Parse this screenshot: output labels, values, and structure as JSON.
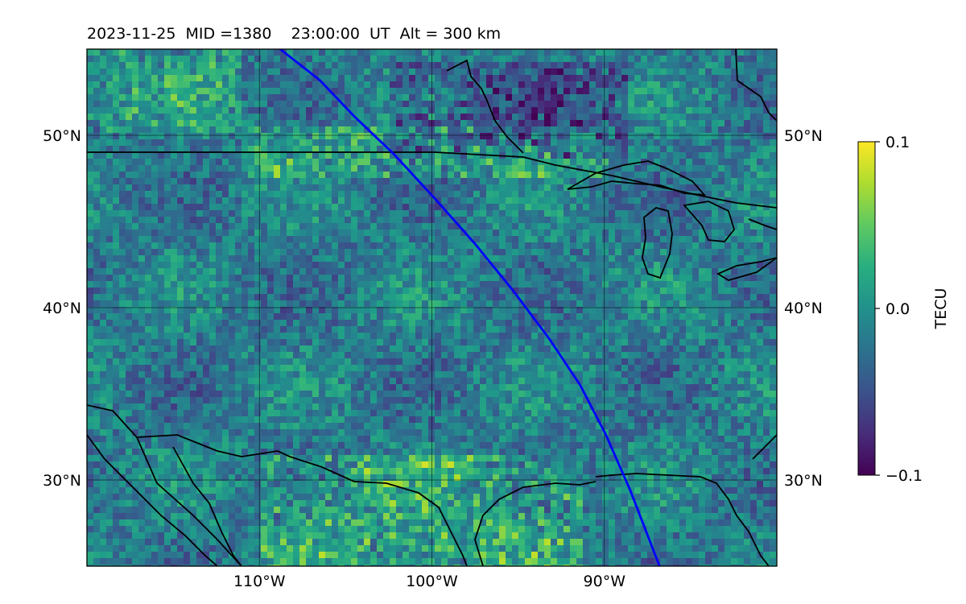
{
  "title": "2023-11-25  MID =1380    23:00:00  UT  Alt = 300 km",
  "colorbar": {
    "label": "TECU",
    "ticks": [
      {
        "value": 0.1,
        "label": "0.1"
      },
      {
        "value": 0.0,
        "label": "0.0"
      },
      {
        "value": -0.1,
        "label": "−0.1"
      }
    ],
    "range": [
      -0.1,
      0.1
    ],
    "colormap": "viridis",
    "colors": {
      "min": "#440154",
      "mid": "#21918c",
      "max": "#fde725"
    }
  },
  "map": {
    "lon_range": [
      -120,
      -80
    ],
    "lat_range": [
      25,
      55
    ],
    "grid": true,
    "lat_ticks": [
      {
        "value": 50,
        "label": "50°N"
      },
      {
        "value": 40,
        "label": "40°N"
      },
      {
        "value": 30,
        "label": "30°N"
      }
    ],
    "lon_ticks": [
      {
        "value": -110,
        "label": "110°W"
      },
      {
        "value": -100,
        "label": "100°W"
      },
      {
        "value": -90,
        "label": "90°W"
      }
    ],
    "terminator_color": "#0000ff",
    "coastline_color": "#000000",
    "terminator_line": [
      [
        -108.8,
        55
      ],
      [
        -106.5,
        53.2
      ],
      [
        -104.5,
        51.1
      ],
      [
        -102.2,
        48.9
      ],
      [
        -99.8,
        46.3
      ],
      [
        -97.5,
        43.7
      ],
      [
        -95.3,
        41.0
      ],
      [
        -93.2,
        38.2
      ],
      [
        -91.4,
        35.5
      ],
      [
        -89.9,
        32.6
      ],
      [
        -88.5,
        29.4
      ],
      [
        -86.8,
        25
      ]
    ]
  }
}
